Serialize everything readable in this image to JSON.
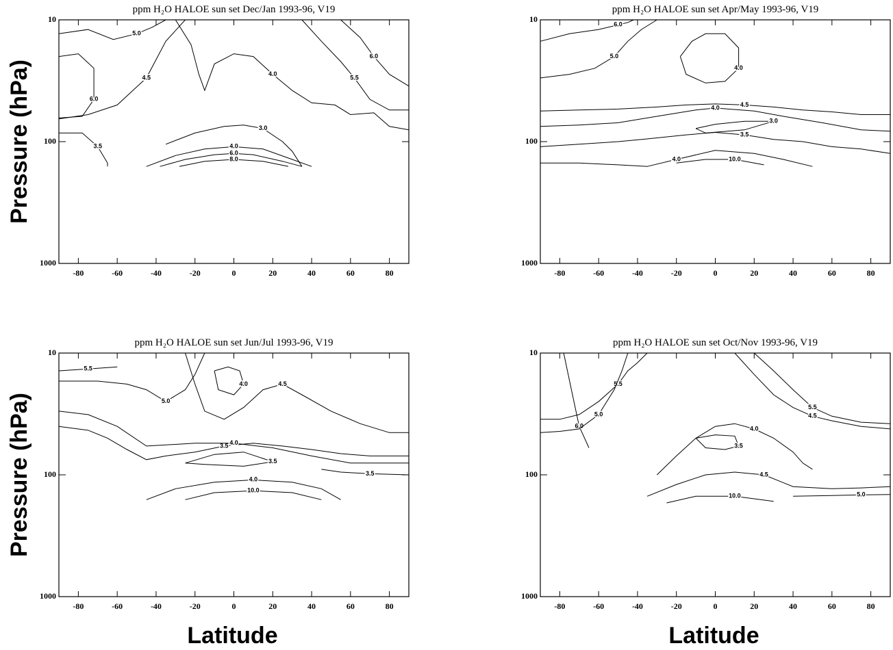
{
  "chart_data": [
    {
      "type": "contour",
      "title": "ppm H₂O  HALOE sun set Dec/Jan 1993-96, V19",
      "y_label": "Pressure (hPa)",
      "xlim": [
        -90,
        90
      ],
      "xticks": [
        -80,
        -60,
        -40,
        -20,
        0,
        20,
        40,
        60,
        80
      ],
      "ylim": [
        1000,
        10
      ],
      "yticks": [
        10,
        100,
        1000
      ],
      "log_y": true,
      "color": "#000000",
      "contours": [
        {
          "label": "5.0",
          "x": [
            -90,
            -75,
            -62,
            -50,
            -42,
            -35
          ],
          "y": [
            13,
            12,
            14.5,
            13,
            11.5,
            10
          ]
        },
        {
          "label": "6.0",
          "x": [
            -90,
            -80,
            -72,
            -72,
            -78,
            -90
          ],
          "y": [
            20,
            19,
            25,
            45,
            62,
            64
          ]
        },
        {
          "label": "4.0",
          "x": [
            -30,
            -22,
            -18,
            -15,
            -10,
            0,
            10,
            20,
            30,
            40,
            52,
            60,
            72,
            80,
            90
          ],
          "y": [
            10,
            16,
            28,
            38,
            23,
            19,
            20,
            28,
            38,
            48,
            50,
            60,
            58,
            75,
            80
          ]
        },
        {
          "label": "4.5",
          "x": [
            -90,
            -75,
            -60,
            -45,
            -35,
            -25
          ],
          "y": [
            65,
            60,
            50,
            30,
            15,
            10
          ]
        },
        {
          "label": "3.5",
          "x": [
            -90,
            -78,
            -70,
            -65,
            -65
          ],
          "y": [
            85,
            85,
            110,
            150,
            160
          ]
        },
        {
          "label": "3.0",
          "x": [
            -35,
            -20,
            -5,
            5,
            15,
            25,
            30,
            35
          ],
          "y": [
            105,
            85,
            75,
            73,
            78,
            100,
            120,
            160
          ]
        },
        {
          "label": "5.5",
          "x": [
            35,
            45,
            55,
            62,
            70,
            80,
            90
          ],
          "y": [
            10,
            15,
            22,
            30,
            45,
            55,
            55
          ]
        },
        {
          "label": "6.0",
          "x": [
            55,
            65,
            72,
            80,
            90
          ],
          "y": [
            10,
            14,
            20,
            28,
            35
          ]
        },
        {
          "label": "4.0",
          "x": [
            -45,
            -30,
            -15,
            0,
            15,
            30,
            40
          ],
          "y": [
            160,
            130,
            115,
            110,
            115,
            140,
            160
          ]
        },
        {
          "label": "6.0",
          "x": [
            -38,
            -25,
            -10,
            0,
            10,
            25,
            35
          ],
          "y": [
            160,
            140,
            128,
            125,
            128,
            145,
            160
          ]
        },
        {
          "label": "8.0",
          "x": [
            -28,
            -15,
            0,
            15,
            28
          ],
          "y": [
            160,
            145,
            140,
            145,
            160
          ]
        }
      ]
    },
    {
      "type": "contour",
      "title": "ppm H₂O  HALOE sun set Apr/May 1993-96, V19",
      "xlim": [
        -90,
        90
      ],
      "xticks": [
        -80,
        -60,
        -40,
        -20,
        0,
        20,
        40,
        60,
        80
      ],
      "ylim": [
        1000,
        10
      ],
      "yticks": [
        10,
        100,
        1000
      ],
      "log_y": true,
      "color": "#000000",
      "contours": [
        {
          "label": "6.0",
          "x": [
            -90,
            -75,
            -60,
            -50,
            -45,
            -42
          ],
          "y": [
            15,
            13,
            12,
            11,
            10.5,
            10
          ]
        },
        {
          "label": "5.0",
          "x": [
            -90,
            -75,
            -62,
            -52,
            -45,
            -38,
            -30
          ],
          "y": [
            30,
            28,
            25,
            20,
            15,
            12,
            10
          ]
        },
        {
          "label": "4.0",
          "x": [
            -18,
            -12,
            -5,
            5,
            12,
            12,
            5,
            -5,
            -15,
            -18
          ],
          "y": [
            20,
            15,
            13,
            13,
            17,
            25,
            32,
            33,
            28,
            20
          ]
        },
        {
          "label": "4.5",
          "x": [
            -90,
            -70,
            -50,
            -30,
            -15,
            0,
            15,
            30,
            45,
            60,
            75,
            90
          ],
          "y": [
            56,
            55,
            54,
            52,
            50,
            49,
            50,
            52,
            55,
            57,
            60,
            60
          ]
        },
        {
          "label": "4.0",
          "x": [
            -90,
            -70,
            -50,
            -30,
            -10,
            0,
            20,
            35,
            55,
            75,
            90
          ],
          "y": [
            75,
            73,
            70,
            62,
            55,
            53,
            56,
            62,
            70,
            80,
            82
          ]
        },
        {
          "label": "3.5",
          "x": [
            -90,
            -70,
            -50,
            -35,
            -15,
            0,
            15,
            30,
            45,
            60,
            75,
            90
          ],
          "y": [
            110,
            105,
            100,
            95,
            88,
            84,
            88,
            96,
            100,
            110,
            115,
            125
          ]
        },
        {
          "label": "3.0",
          "x": [
            -10,
            0,
            15,
            30,
            15,
            -5,
            -10
          ],
          "y": [
            78,
            72,
            68,
            68,
            80,
            85,
            78
          ]
        },
        {
          "label": "4.0",
          "x": [
            -90,
            -70,
            -50,
            -35,
            -20,
            0,
            20,
            35,
            50
          ],
          "y": [
            150,
            150,
            155,
            160,
            140,
            118,
            125,
            140,
            160
          ]
        },
        {
          "label": "10.0",
          "x": [
            -20,
            -5,
            10,
            25
          ],
          "y": [
            150,
            140,
            140,
            155
          ]
        }
      ]
    },
    {
      "type": "contour",
      "title": "ppm H₂O  HALOE sun set Jun/Jul 1993-96, V19",
      "y_label": "Pressure (hPa)",
      "x_label": "Latitude",
      "xlim": [
        -90,
        90
      ],
      "xticks": [
        -80,
        -60,
        -40,
        -20,
        0,
        20,
        40,
        60,
        80
      ],
      "ylim": [
        1000,
        10
      ],
      "yticks": [
        10,
        100,
        1000
      ],
      "log_y": true,
      "color": "#000000",
      "contours": [
        {
          "label": "5.5",
          "x": [
            -90,
            -75,
            -60
          ],
          "y": [
            14,
            13.5,
            13
          ]
        },
        {
          "label": "5.0",
          "x": [
            -90,
            -70,
            -55,
            -45,
            -35,
            -25,
            -20,
            -15
          ],
          "y": [
            17,
            17,
            18,
            20,
            25,
            20,
            15,
            10
          ]
        },
        {
          "label": "4.5",
          "x": [
            -25,
            -20,
            -15,
            -5,
            5,
            15,
            25,
            35,
            50,
            65,
            80,
            90
          ],
          "y": [
            10,
            18,
            30,
            35,
            28,
            20,
            18,
            22,
            30,
            38,
            45,
            45
          ]
        },
        {
          "label": "4.0",
          "x": [
            -10,
            -3,
            3,
            5,
            0,
            -8,
            -10
          ],
          "y": [
            14,
            13,
            14,
            18,
            22,
            20,
            14
          ]
        },
        {
          "label": "3.5",
          "x": [
            -90,
            -75,
            -65,
            -55,
            -45,
            -35,
            -20,
            -5,
            10,
            25,
            40,
            55,
            70,
            90
          ],
          "y": [
            40,
            43,
            50,
            62,
            75,
            70,
            65,
            58,
            55,
            58,
            62,
            67,
            70,
            70
          ]
        },
        {
          "label": "4.0",
          "x": [
            -90,
            -75,
            -60,
            -45,
            -20,
            0,
            20,
            40,
            60,
            90
          ],
          "y": [
            30,
            32,
            40,
            58,
            55,
            55,
            60,
            70,
            80,
            80
          ]
        },
        {
          "label": "3.5",
          "x": [
            45,
            55,
            70,
            90
          ],
          "y": [
            90,
            95,
            98,
            100
          ]
        },
        {
          "label": "3.5",
          "x": [
            -25,
            -10,
            5,
            20,
            5,
            -15,
            -25
          ],
          "y": [
            80,
            68,
            65,
            78,
            85,
            82,
            80
          ]
        },
        {
          "label": "4.0",
          "x": [
            -45,
            -30,
            -10,
            10,
            30,
            45,
            55
          ],
          "y": [
            160,
            130,
            115,
            110,
            115,
            130,
            160
          ]
        },
        {
          "label": "10.0",
          "x": [
            -25,
            -10,
            10,
            30,
            45
          ],
          "y": [
            160,
            140,
            135,
            140,
            160
          ]
        }
      ]
    },
    {
      "type": "contour",
      "title": "ppm H₂O  HALOE sun set Oct/Nov 1993-96, V19",
      "x_label": "Latitude",
      "xlim": [
        -90,
        90
      ],
      "xticks": [
        -80,
        -60,
        -40,
        -20,
        0,
        20,
        40,
        60,
        80
      ],
      "ylim": [
        1000,
        10
      ],
      "yticks": [
        10,
        100,
        1000
      ],
      "log_y": true,
      "color": "#000000",
      "contours": [
        {
          "label": "6.0",
          "x": [
            -78,
            -74,
            -70,
            -65
          ],
          "y": [
            10,
            20,
            40,
            60
          ]
        },
        {
          "label": "5.5",
          "x": [
            -90,
            -80,
            -70,
            -60,
            -50,
            -45,
            -40,
            -35
          ],
          "y": [
            35,
            35,
            32,
            25,
            18,
            14,
            12,
            10
          ]
        },
        {
          "label": "5.0",
          "x": [
            -90,
            -80,
            -70,
            -60,
            -52,
            -48,
            -45
          ],
          "y": [
            45,
            44,
            42,
            32,
            20,
            14,
            10
          ]
        },
        {
          "label": "4.0",
          "x": [
            -30,
            -20,
            -10,
            0,
            10,
            20,
            30,
            40,
            45,
            50
          ],
          "y": [
            100,
            70,
            50,
            40,
            38,
            42,
            50,
            65,
            80,
            90
          ]
        },
        {
          "label": "3.5",
          "x": [
            -10,
            0,
            10,
            12,
            5,
            -5,
            -10
          ],
          "y": [
            50,
            47,
            48,
            58,
            62,
            60,
            50
          ]
        },
        {
          "label": "5.5",
          "x": [
            20,
            30,
            40,
            50,
            60,
            75,
            90
          ],
          "y": [
            10,
            14,
            20,
            28,
            33,
            37,
            38
          ]
        },
        {
          "label": "4.5",
          "x": [
            10,
            20,
            30,
            40,
            50,
            60,
            75,
            90
          ],
          "y": [
            10,
            15,
            22,
            28,
            33,
            36,
            40,
            42
          ]
        },
        {
          "label": "4.5",
          "x": [
            -35,
            -20,
            -5,
            10,
            25,
            40,
            60,
            75,
            90
          ],
          "y": [
            150,
            120,
            100,
            95,
            100,
            125,
            130,
            128,
            125
          ]
        },
        {
          "label": "10.0",
          "x": [
            -25,
            -10,
            10,
            30
          ],
          "y": [
            170,
            150,
            150,
            165
          ]
        },
        {
          "label": "5.0",
          "x": [
            40,
            60,
            75,
            90
          ],
          "y": [
            150,
            148,
            146,
            145
          ]
        }
      ]
    }
  ]
}
